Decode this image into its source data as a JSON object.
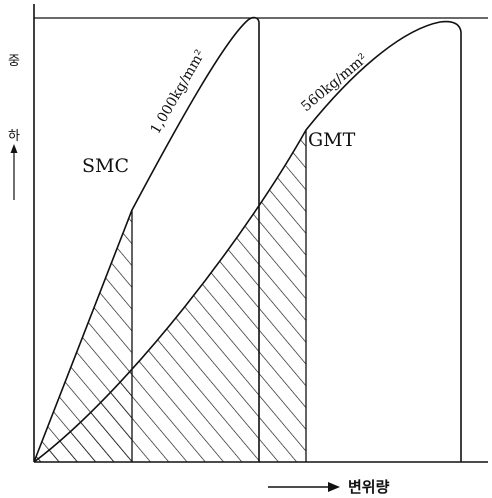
{
  "axes": {
    "y_label_chars": [
      "중",
      "하"
    ],
    "x_label": "변위량"
  },
  "curves": [
    {
      "name": "SMC",
      "annotation": "1,000kg/mm²"
    },
    {
      "name": "GMT",
      "annotation": "560kg/mm²"
    }
  ],
  "colors": {
    "ink": "#111111",
    "background": "#ffffff"
  }
}
